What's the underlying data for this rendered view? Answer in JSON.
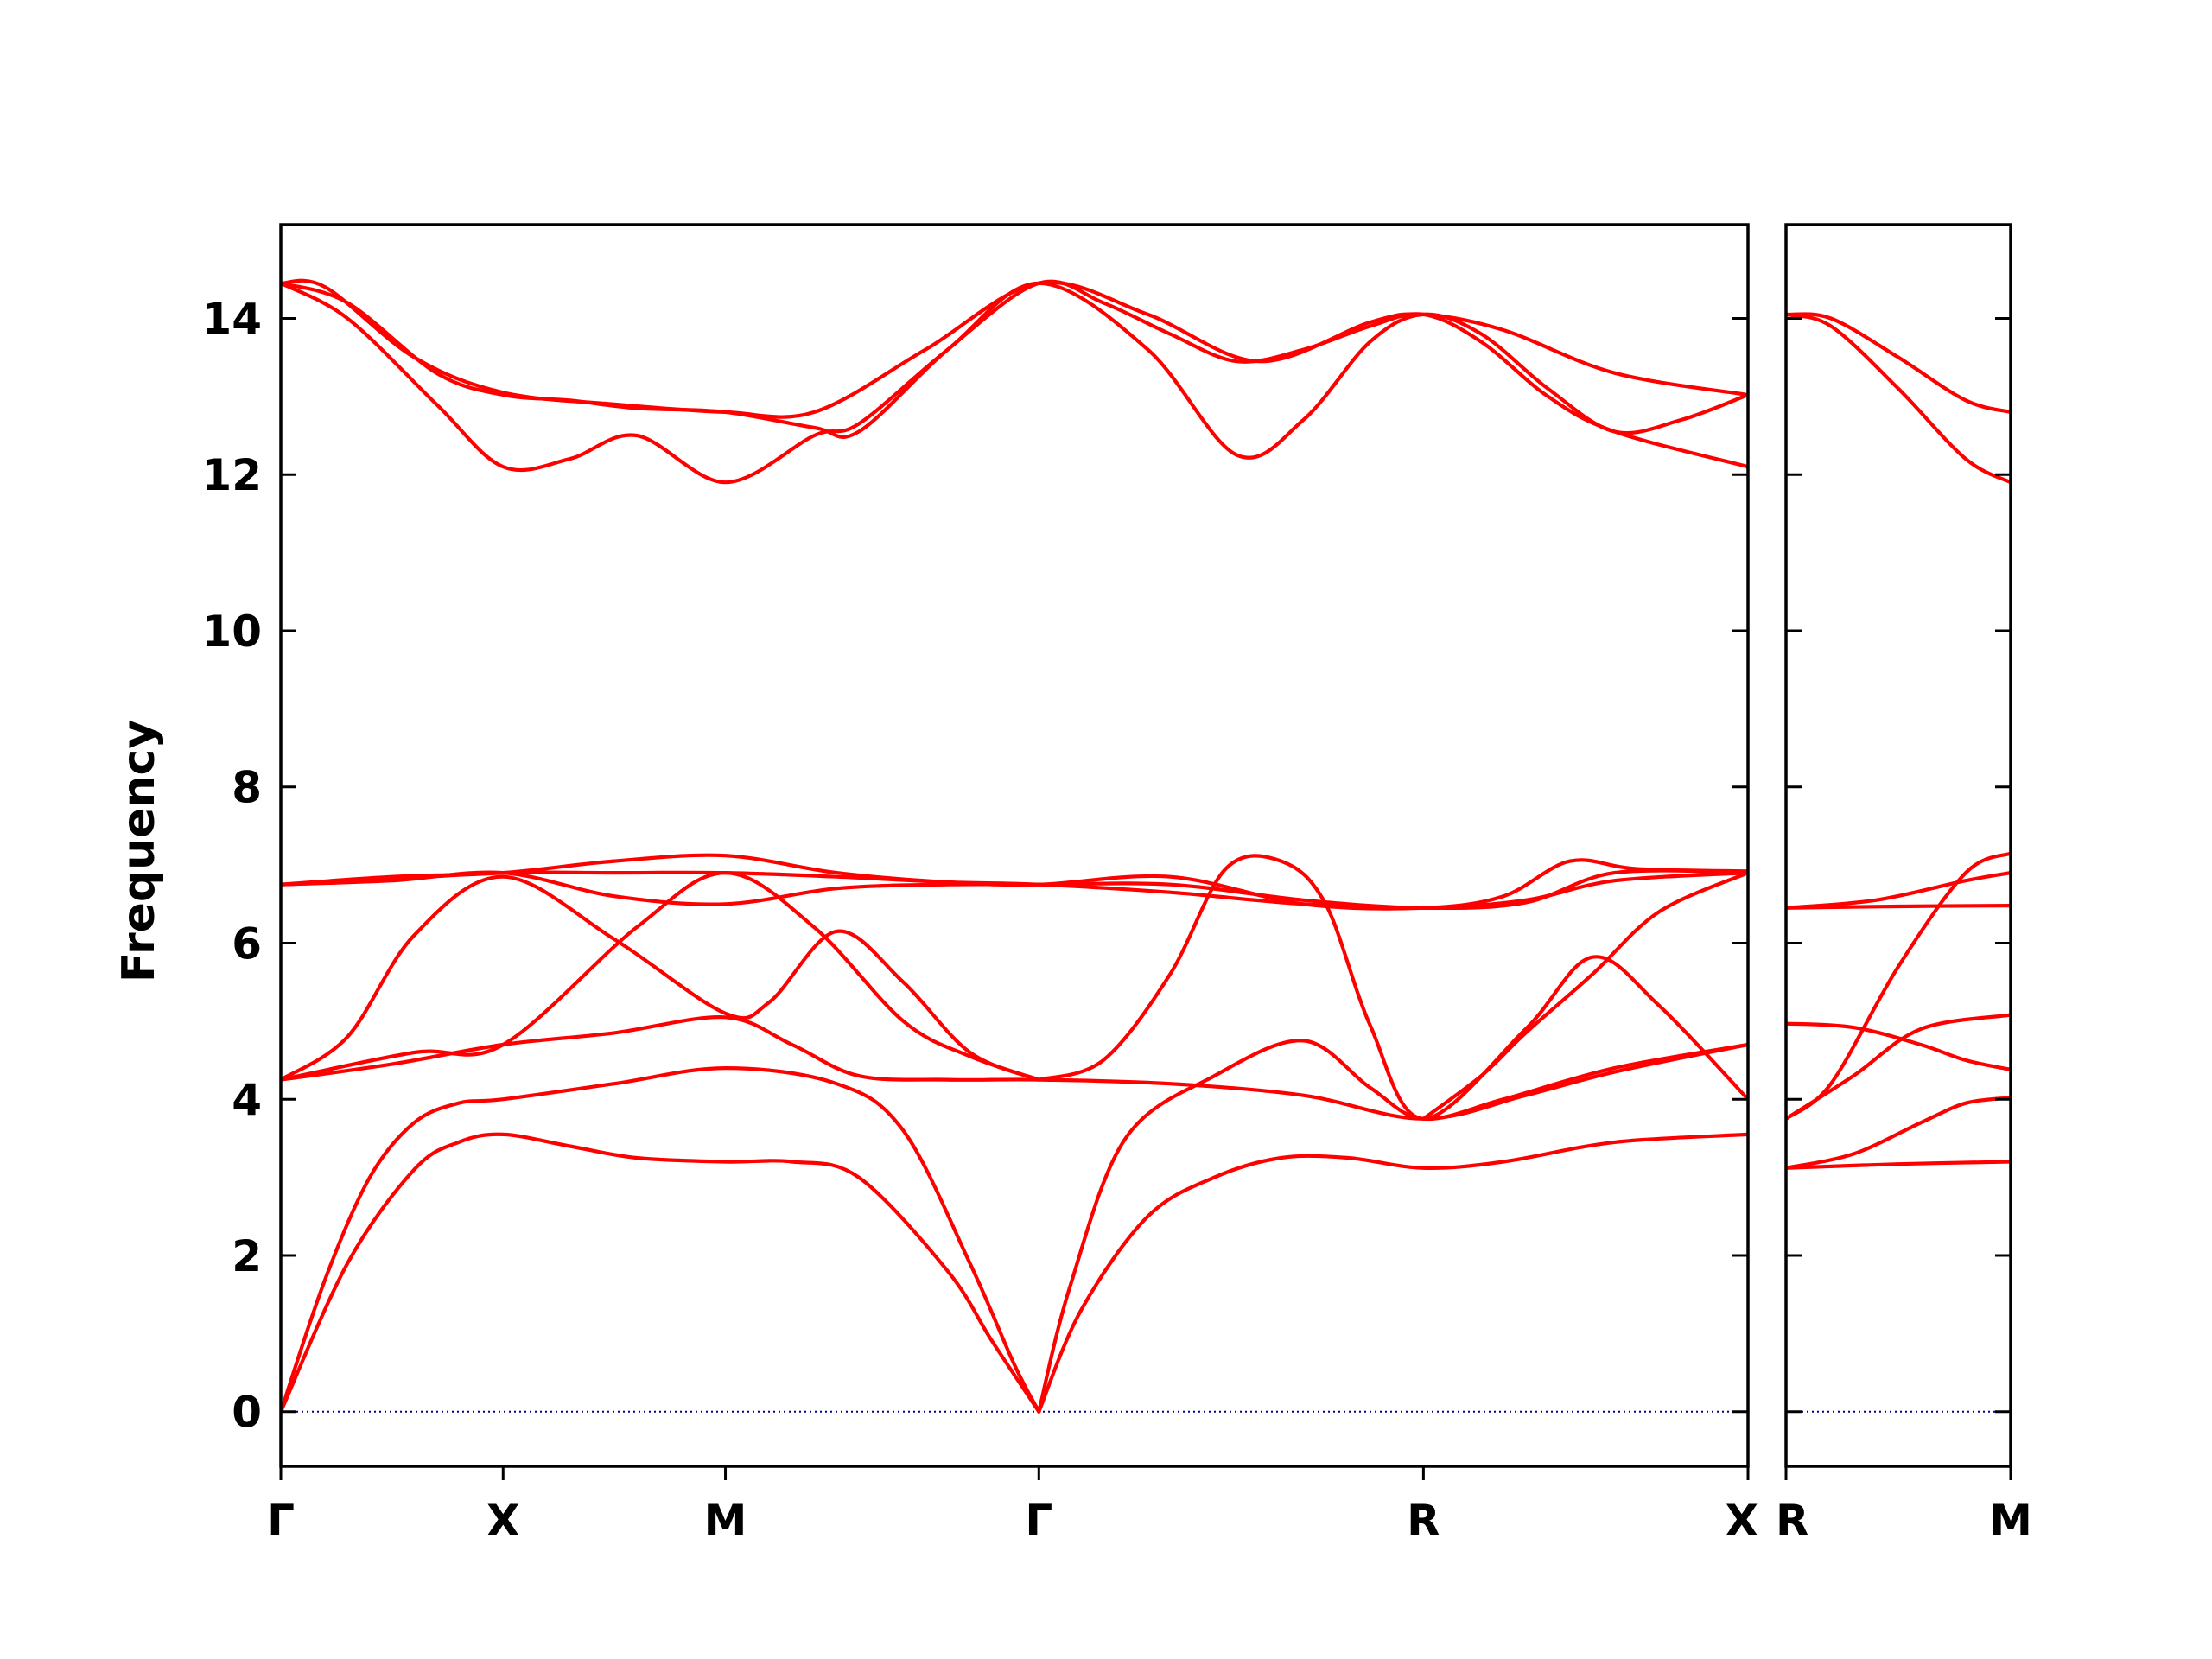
{
  "chart_data": {
    "type": "line",
    "title": "",
    "ylabel": "Frequency",
    "xlabel": "",
    "ylim": [
      -0.7,
      15.2
    ],
    "yticks": [
      0,
      2,
      4,
      6,
      8,
      10,
      12,
      14
    ],
    "grid": false,
    "legend": "none",
    "line_color": "#ff0000",
    "zero_line_color": "#00008b",
    "panels": [
      {
        "name": "panel-left",
        "xlim": [
          0,
          6.6
        ],
        "high_symmetry_points": [
          {
            "label": "Γ",
            "x": 0.0
          },
          {
            "label": "X",
            "x": 1.0
          },
          {
            "label": "M",
            "x": 2.0
          },
          {
            "label": "Γ",
            "x": 3.41
          },
          {
            "label": "R",
            "x": 5.14
          },
          {
            "label": "X",
            "x": 6.6
          }
        ],
        "branches": [
          {
            "x": [
              0,
              0.3,
              0.6,
              0.8,
              1.0,
              1.3,
              1.6,
              2.0,
              2.3,
              2.6,
              3.0,
              3.2,
              3.41
            ],
            "y": [
              0,
              1.9,
              3.1,
              3.45,
              3.55,
              3.4,
              3.25,
              3.2,
              3.2,
              3.0,
              1.8,
              0.9,
              0
            ]
          },
          {
            "x": [
              0,
              0.2,
              0.4,
              0.6,
              0.8,
              1.0,
              1.5,
              2.0,
              2.5,
              2.8,
              3.1,
              3.3,
              3.41
            ],
            "y": [
              0,
              1.7,
              3.0,
              3.7,
              3.95,
              4.0,
              4.2,
              4.4,
              4.2,
              3.6,
              1.9,
              0.6,
              0
            ]
          },
          {
            "x": [
              3.41,
              3.6,
              3.9,
              4.2,
              4.5,
              4.8,
              5.14,
              5.5,
              6.0,
              6.6
            ],
            "y": [
              0,
              1.3,
              2.5,
              3.0,
              3.25,
              3.25,
              3.12,
              3.2,
              3.45,
              3.55
            ]
          },
          {
            "x": [
              3.41,
              3.55,
              3.8,
              4.2,
              4.6,
              4.9,
              5.14,
              5.5,
              6.0,
              6.6
            ],
            "y": [
              0,
              1.6,
              3.5,
              4.3,
              4.75,
              4.15,
              3.75,
              4.0,
              4.4,
              4.7
            ]
          },
          {
            "x": [
              0,
              0.5,
              1.0,
              1.5,
              2.0,
              2.3,
              2.6,
              3.0,
              3.41,
              4.0,
              4.6,
              5.14,
              5.6,
              6.0,
              6.6
            ],
            "y": [
              4.25,
              4.45,
              4.7,
              4.85,
              5.05,
              4.7,
              4.3,
              4.25,
              4.25,
              4.2,
              4.05,
              3.75,
              4.05,
              4.35,
              4.7
            ]
          },
          {
            "x": [
              0,
              0.3,
              0.6,
              1.0,
              1.5,
              2.0,
              2.2,
              2.5,
              2.8,
              3.1,
              3.41
            ],
            "y": [
              4.25,
              4.8,
              6.1,
              6.85,
              6.05,
              5.1,
              5.25,
              6.15,
              5.5,
              4.6,
              4.25
            ]
          },
          {
            "x": [
              3.41,
              3.7,
              4.0,
              4.25,
              4.5,
              4.7,
              4.9,
              5.14,
              5.6,
              5.9,
              6.2,
              6.6
            ],
            "y": [
              4.25,
              4.5,
              5.6,
              6.95,
              7.05,
              6.5,
              4.95,
              3.75,
              4.9,
              5.82,
              5.2,
              4.0
            ]
          },
          {
            "x": [
              0,
              0.6,
              1.0,
              1.6,
              2.0,
              2.4,
              2.8,
              3.1,
              3.41
            ],
            "y": [
              4.25,
              4.6,
              4.7,
              6.2,
              6.9,
              6.2,
              5.0,
              4.55,
              4.25
            ]
          },
          {
            "x": [
              5.14,
              5.4,
              5.6,
              5.9,
              6.2,
              6.6
            ],
            "y": [
              3.75,
              4.3,
              4.85,
              5.6,
              6.4,
              6.9
            ]
          },
          {
            "x": [
              0,
              0.5,
              1.0,
              1.5,
              2.0,
              2.5,
              3.0,
              3.41,
              4.0,
              4.6,
              5.14,
              5.6,
              6.0,
              6.6
            ],
            "y": [
              6.75,
              6.8,
              6.9,
              6.6,
              6.5,
              6.7,
              6.75,
              6.75,
              6.75,
              6.55,
              6.45,
              6.52,
              6.9,
              6.9
            ]
          },
          {
            "x": [
              0,
              0.5,
              1.0,
              1.5,
              2.0,
              2.5,
              3.0,
              3.41,
              4.0,
              4.6,
              5.14,
              5.6,
              6.0,
              6.6
            ],
            "y": [
              6.75,
              6.82,
              6.9,
              6.9,
              6.9,
              6.85,
              6.78,
              6.75,
              6.65,
              6.5,
              6.45,
              6.55,
              6.8,
              6.9
            ]
          },
          {
            "x": [
              0,
              0.5,
              1.0,
              1.5,
              2.0,
              2.5,
              3.0,
              3.41,
              4.0,
              4.6,
              5.14,
              5.5,
              5.8,
              6.1,
              6.6
            ],
            "y": [
              6.75,
              6.85,
              6.9,
              7.05,
              7.12,
              6.9,
              6.78,
              6.75,
              6.85,
              6.5,
              6.45,
              6.6,
              7.05,
              6.95,
              6.92
            ]
          },
          {
            "x": [
              0,
              0.2,
              0.6,
              1.0,
              1.5,
              2.0,
              2.4,
              2.9,
              3.41,
              3.9,
              4.4,
              4.9,
              5.14,
              5.5,
              6.0,
              6.6
            ],
            "y": [
              14.45,
              14.4,
              13.5,
              13.05,
              12.9,
              12.8,
              12.8,
              13.6,
              14.45,
              14.05,
              13.45,
              13.95,
              14.05,
              13.85,
              13.3,
              13.02
            ]
          },
          {
            "x": [
              0,
              0.3,
              0.7,
              1.0,
              1.3,
              1.6,
              2.0,
              2.4,
              2.6,
              3.0,
              3.41,
              3.7,
              4.0,
              4.3,
              4.6,
              4.9,
              5.14,
              5.4,
              5.7,
              6.0,
              6.6
            ],
            "y": [
              14.45,
              14.2,
              13.3,
              13.02,
              12.95,
              12.85,
              12.8,
              12.6,
              12.55,
              13.6,
              14.45,
              14.2,
              13.8,
              13.45,
              13.6,
              13.9,
              14.05,
              13.7,
              13.0,
              12.55,
              12.1
            ]
          },
          {
            "x": [
              0,
              0.3,
              0.7,
              1.0,
              1.3,
              1.6,
              2.0,
              2.4,
              2.6,
              3.0,
              3.41,
              3.9,
              4.3,
              4.6,
              4.9,
              5.14,
              5.4,
              5.7,
              6.0,
              6.3,
              6.6
            ],
            "y": [
              14.45,
              14.0,
              12.9,
              12.1,
              12.2,
              12.5,
              11.9,
              12.5,
              12.65,
              13.6,
              14.45,
              13.6,
              12.25,
              12.7,
              13.7,
              14.05,
              13.8,
              13.1,
              12.55,
              12.7,
              13.02
            ]
          }
        ]
      },
      {
        "name": "panel-right",
        "xlim": [
          0,
          1.0
        ],
        "high_symmetry_points": [
          {
            "label": "R",
            "x": 0.0
          },
          {
            "label": "M",
            "x": 1.0
          }
        ],
        "branches": [
          {
            "x": [
              0,
              0.5,
              1.0
            ],
            "y": [
              3.12,
              3.17,
              3.2
            ]
          },
          {
            "x": [
              0,
              0.3,
              0.6,
              0.8,
              1.0
            ],
            "y": [
              3.12,
              3.3,
              3.7,
              3.95,
              4.02
            ]
          },
          {
            "x": [
              0,
              0.3,
              0.6,
              1.0
            ],
            "y": [
              3.75,
              4.3,
              4.9,
              5.08
            ]
          },
          {
            "x": [
              0,
              0.3,
              0.6,
              0.8,
              1.0
            ],
            "y": [
              4.97,
              4.92,
              4.7,
              4.5,
              4.38
            ]
          },
          {
            "x": [
              0,
              0.2,
              0.5,
              0.8,
              1.0
            ],
            "y": [
              3.75,
              4.2,
              5.7,
              6.9,
              7.15
            ]
          },
          {
            "x": [
              0,
              0.5,
              1.0
            ],
            "y": [
              6.45,
              6.47,
              6.48
            ]
          },
          {
            "x": [
              0,
              0.4,
              0.8,
              1.0
            ],
            "y": [
              6.45,
              6.55,
              6.8,
              6.9
            ]
          },
          {
            "x": [
              0,
              0.2,
              0.5,
              0.8,
              1.0
            ],
            "y": [
              14.05,
              14.0,
              13.5,
              12.95,
              12.8
            ]
          },
          {
            "x": [
              0,
              0.2,
              0.5,
              0.8,
              1.0
            ],
            "y": [
              14.05,
              13.9,
              13.1,
              12.2,
              11.9
            ]
          }
        ]
      }
    ]
  }
}
